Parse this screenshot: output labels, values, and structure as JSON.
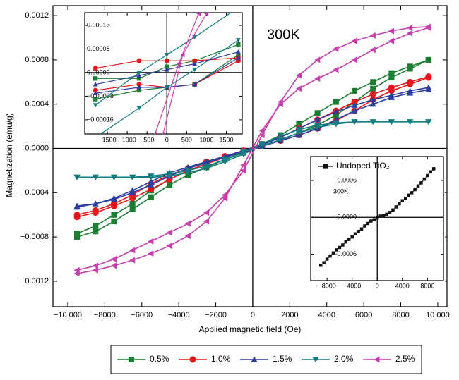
{
  "chart_data": [
    {
      "type": "line",
      "annotation": "300K",
      "x_label": "Applied magnetic field (Oe)",
      "y_label": "Magnetization (emu/g)",
      "legend": "bottom",
      "xlim": [
        -10800,
        10500
      ],
      "ylim": [
        -0.00143,
        0.00129
      ],
      "xticks": [
        {
          "value": -10000,
          "label": "−10 000"
        },
        {
          "value": -8000,
          "label": "−8000"
        },
        {
          "value": -6000,
          "label": "−6000"
        },
        {
          "value": -4000,
          "label": "−4000"
        },
        {
          "value": -2000,
          "label": "−2000"
        },
        0,
        2000,
        4000,
        6000,
        8000,
        {
          "value": 10000,
          "label": "10 000"
        }
      ],
      "yticks": [
        {
          "value": -0.0012,
          "label": "−0.0012"
        },
        {
          "value": -0.0008,
          "label": "−0.0008"
        },
        {
          "value": -0.0004,
          "label": "−0.0004"
        },
        {
          "value": 0,
          "label": "0.0000"
        },
        0.0004,
        0.0008,
        0.0012
      ],
      "x": [
        9500,
        8500,
        7500,
        6500,
        5500,
        4500,
        3500,
        2500,
        1500,
        500,
        -500,
        -1500,
        -2500,
        -3500,
        -4500,
        -5500,
        -6500,
        -7500,
        -8500,
        -9500,
        -9500,
        -8500,
        -7500,
        -6500,
        -5500,
        -4500,
        -3500,
        -2500,
        -1500,
        -500,
        500,
        1500,
        2500,
        3500,
        4500,
        5500,
        6500,
        7500,
        8500,
        9500
      ],
      "series": [
        {
          "name": "0.5%",
          "color": "#1b7d31",
          "marker": "square",
          "values": [
            0.0008,
            0.00074,
            0.00068,
            0.0006,
            0.00052,
            0.00042,
            0.00032,
            0.00022,
            0.00012,
            4e-05,
            -2e-05,
            -8e-05,
            -0.00014,
            -0.0002,
            -0.00028,
            -0.00038,
            -0.0005,
            -0.0006,
            -0.0007,
            -0.00077,
            -0.0008,
            -0.00075,
            -0.00066,
            -0.00055,
            -0.00044,
            -0.00033,
            -0.00024,
            -0.00017,
            -0.0001,
            -4e-05,
            2e-05,
            8e-05,
            0.00014,
            0.00021,
            0.0003,
            0.00042,
            0.00054,
            0.00064,
            0.00072,
            0.0008
          ]
        },
        {
          "name": "1.0%",
          "color": "#e8161b",
          "marker": "circle",
          "values": [
            0.00065,
            0.0006,
            0.00055,
            0.00049,
            0.00042,
            0.00034,
            0.00026,
            0.00018,
            0.0001,
            3e-05,
            -2e-05,
            -7e-05,
            -0.00012,
            -0.00018,
            -0.00024,
            -0.00032,
            -0.00042,
            -0.0005,
            -0.00056,
            -0.0006,
            -0.00062,
            -0.00058,
            -0.00052,
            -0.00045,
            -0.00037,
            -0.00028,
            -0.0002,
            -0.00014,
            -8e-05,
            -3e-05,
            2e-05,
            7e-05,
            0.00012,
            0.00018,
            0.00025,
            0.00034,
            0.00044,
            0.00052,
            0.00058,
            0.00064
          ]
        },
        {
          "name": "1.5%",
          "color": "#2b3d9e",
          "marker": "triangle-up",
          "values": [
            0.00055,
            0.00052,
            0.00048,
            0.00044,
            0.00039,
            0.00033,
            0.00026,
            0.00018,
            0.0001,
            3e-05,
            -2e-05,
            -7e-05,
            -0.00012,
            -0.00017,
            -0.00022,
            -0.0003,
            -0.00038,
            -0.00045,
            -0.0005,
            -0.00052,
            -0.00053,
            -0.0005,
            -0.00046,
            -0.0004,
            -0.00033,
            -0.00025,
            -0.00018,
            -0.00013,
            -8e-05,
            -3e-05,
            2e-05,
            7e-05,
            0.00012,
            0.00018,
            0.00026,
            0.00034,
            0.0004,
            0.00046,
            0.0005,
            0.00053
          ]
        },
        {
          "name": "2.0%",
          "color": "#127c82",
          "marker": "triangle-down",
          "values": [
            0.00024,
            0.00024,
            0.00024,
            0.00024,
            0.00024,
            0.00023,
            0.00021,
            0.00017,
            0.00011,
            4e-05,
            -3e-05,
            -0.0001,
            -0.00016,
            -0.0002,
            -0.00023,
            -0.00025,
            -0.00026,
            -0.00026,
            -0.00026,
            -0.00026,
            -0.00026,
            -0.00026,
            -0.00026,
            -0.00026,
            -0.00026,
            -0.00025,
            -0.00022,
            -0.00018,
            -0.00012,
            -5e-05,
            2e-05,
            8e-05,
            0.00014,
            0.00019,
            0.00022,
            0.00024,
            0.00024,
            0.00024,
            0.00024,
            0.00024
          ]
        },
        {
          "name": "2.5%",
          "color": "#c43fab",
          "marker": "triangle-left",
          "values": [
            0.0011,
            0.00109,
            0.00106,
            0.00102,
            0.00097,
            0.0009,
            0.0008,
            0.00066,
            0.00042,
            0.00012,
            -0.0002,
            -0.00042,
            -0.00058,
            -0.00068,
            -0.00076,
            -0.00084,
            -0.00092,
            -0.001,
            -0.00106,
            -0.0011,
            -0.00113,
            -0.0011,
            -0.00106,
            -0.00101,
            -0.00095,
            -0.00088,
            -0.00079,
            -0.00066,
            -0.00045,
            -0.00015,
            0.00016,
            0.0004,
            0.00054,
            0.00063,
            0.00071,
            0.0008,
            0.00089,
            0.00097,
            0.00104,
            0.00109
          ]
        }
      ]
    },
    {
      "type": "line",
      "xlim": [
        -2070,
        1900
      ],
      "ylim": [
        -0.000208,
        0.000203
      ],
      "xticks": [
        {
          "value": -1500,
          "label": "−1500"
        },
        {
          "value": -1000,
          "label": "−1000"
        },
        {
          "value": -500,
          "label": "−500"
        },
        0,
        500,
        1000,
        1500
      ],
      "yticks": [
        {
          "value": -0.00016,
          "label": "−0.00016"
        },
        {
          "value": -8e-05,
          "label": "−0.00008"
        },
        {
          "value": 0,
          "label": "0.00000"
        },
        8e-05,
        0.00016
      ],
      "series": [
        {
          "color": "#1b7d31",
          "marker": "square",
          "x": [
            1800,
            700,
            0,
            -700,
            -1800,
            null,
            -1800,
            -700,
            0,
            700,
            1800
          ],
          "values": [
            9.5e-05,
            4e-05,
            2e-05,
            -2e-05,
            -2e-05,
            null,
            -9e-05,
            -6e-05,
            -5e-05,
            -4e-05,
            6e-05
          ]
        },
        {
          "color": "#e8161b",
          "marker": "circle",
          "x": [
            1800,
            700,
            0,
            -700,
            -1800,
            null,
            -1800,
            -700,
            0,
            700,
            1800
          ],
          "values": [
            5e-05,
            4e-05,
            4e-05,
            4e-05,
            1.5e-05,
            null,
            -6e-05,
            -4e-05,
            -5e-05,
            -4e-05,
            4e-05
          ]
        },
        {
          "color": "#2b3d9e",
          "marker": "triangle-up",
          "x": [
            1800,
            700,
            0,
            -700,
            -1800,
            null,
            -1800,
            -700,
            0,
            700,
            1800
          ],
          "values": [
            7e-05,
            3e-05,
            1e-05,
            -1e-05,
            -4e-05,
            null,
            -7e-05,
            -5e-05,
            -5e-05,
            -4e-05,
            5e-05
          ]
        },
        {
          "color": "#127c82",
          "marker": "triangle-down",
          "x": [
            1800,
            700,
            0,
            -700,
            -1800,
            null,
            -1800,
            -700,
            0,
            700,
            1800
          ],
          "values": [
            0.00022,
            0.00012,
            6e-05,
            0,
            -0.00011,
            null,
            -0.00022,
            -0.00012,
            -5e-05,
            1e-05,
            0.00011
          ]
        },
        {
          "color": "#c43fab",
          "marker": "triangle-left",
          "x": [
            1000,
            400,
            -100,
            null,
            -300,
            300,
            800
          ],
          "values": [
            0.0002,
            6e-05,
            -0.00021,
            null,
            -0.00021,
            3e-05,
            0.0002
          ]
        }
      ]
    },
    {
      "type": "line",
      "annotation": "300K",
      "legend": "top-left",
      "xlim": [
        -10600,
        10550
      ],
      "ylim": [
        -0.00103,
        0.00099
      ],
      "xticks": [
        {
          "value": -8000,
          "label": "−8000"
        },
        {
          "value": -4000,
          "label": "−4000"
        },
        0,
        4000,
        8000
      ],
      "yticks": [
        {
          "value": -0.0006,
          "label": "−0.0006"
        },
        {
          "value": 0,
          "label": "0.0000"
        },
        0.0006
      ],
      "series": [
        {
          "name": "Undoped TiO₂",
          "color": "#111111",
          "marker": "square",
          "x": [
            -9000,
            -8500,
            -8000,
            -7500,
            -7000,
            -6500,
            -6000,
            -5500,
            -5000,
            -4500,
            -4000,
            -3500,
            -3000,
            -2500,
            -2000,
            -1500,
            -1000,
            -500,
            0,
            500,
            1000,
            1500,
            2000,
            2500,
            3000,
            3500,
            4000,
            4500,
            5000,
            5500,
            6000,
            6500,
            7000,
            7500,
            8000,
            8500,
            9000
          ],
          "values": [
            -0.00078,
            -0.00074,
            -0.00068,
            -0.00063,
            -0.00058,
            -0.00053,
            -0.00049,
            -0.00045,
            -0.0004,
            -0.00036,
            -0.00032,
            -0.00027,
            -0.00023,
            -0.00019,
            -0.00014,
            -0.0001,
            -6e-05,
            -4e-05,
            -1e-05,
            2e-05,
            3e-05,
            5e-05,
            8e-05,
            0.00012,
            0.00017,
            0.00022,
            0.00027,
            0.00031,
            0.00036,
            0.0004,
            0.00045,
            0.00051,
            0.00056,
            0.00062,
            0.00068,
            0.00074,
            0.00079
          ]
        }
      ]
    }
  ]
}
